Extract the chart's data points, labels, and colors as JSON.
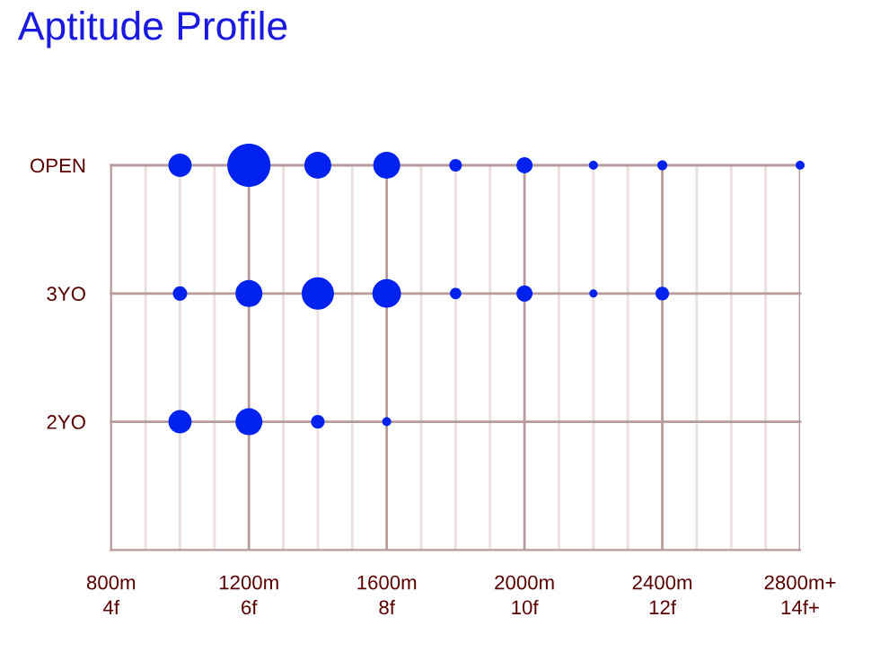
{
  "chart_data": {
    "type": "bubble",
    "title": "Aptitude Profile",
    "orientation": "horizontal",
    "categories": [
      "OPEN",
      "3YO",
      "2YO"
    ],
    "xlim": [
      800,
      2800
    ],
    "xticks": [
      {
        "value": 800,
        "label": "800m"
      },
      {
        "value": 1200,
        "label": "1200m"
      },
      {
        "value": 1600,
        "label": "1600m"
      },
      {
        "value": 2000,
        "label": "2000m"
      },
      {
        "value": 2400,
        "label": "2400m"
      },
      {
        "value": 2800,
        "label": "2800m+"
      }
    ],
    "x2lim": [
      4,
      14
    ],
    "x2ticks": [
      {
        "value": 4,
        "label": "4f"
      },
      {
        "value": 6,
        "label": "6f"
      },
      {
        "value": 8,
        "label": "8f"
      },
      {
        "value": 10,
        "label": "10f"
      },
      {
        "value": 12,
        "label": "12f"
      },
      {
        "value": 14,
        "label": "14f+"
      }
    ],
    "grid": true,
    "series": [
      {
        "color": "#0022ee",
        "values": [
          1000,
          1000,
          1000
        ],
        "sizes": [
          0.29,
          0.11,
          0.29
        ]
      },
      {
        "color": "#0022ee",
        "values": [
          1200,
          1200,
          1200
        ],
        "sizes": [
          1,
          0.39,
          0.39
        ]
      },
      {
        "color": "#0022ee",
        "values": [
          1400,
          1400,
          1400
        ],
        "sizes": [
          0.39,
          0.56,
          0.1
        ]
      },
      {
        "color": "#0022ee",
        "values": [
          1600,
          1600,
          1600
        ],
        "sizes": [
          0.39,
          0.44,
          0.043
        ]
      },
      {
        "color": "#0022ee",
        "values": [
          1800,
          1800,
          null
        ],
        "sizes": [
          0.085,
          0.07,
          null
        ]
      },
      {
        "color": "#0022ee",
        "values": [
          2000,
          2000,
          null
        ],
        "sizes": [
          0.14,
          0.14,
          null
        ]
      },
      {
        "color": "#0022ee",
        "values": [
          2200,
          2200,
          null
        ],
        "sizes": [
          0.043,
          0.035,
          null
        ]
      },
      {
        "color": "#0022ee",
        "values": [
          2400,
          2400,
          null
        ],
        "sizes": [
          0.053,
          0.1,
          null
        ]
      },
      {
        "color": "#0022ee",
        "values": [
          2800,
          null,
          null
        ],
        "sizes": [
          0.043,
          null,
          null
        ]
      }
    ]
  }
}
